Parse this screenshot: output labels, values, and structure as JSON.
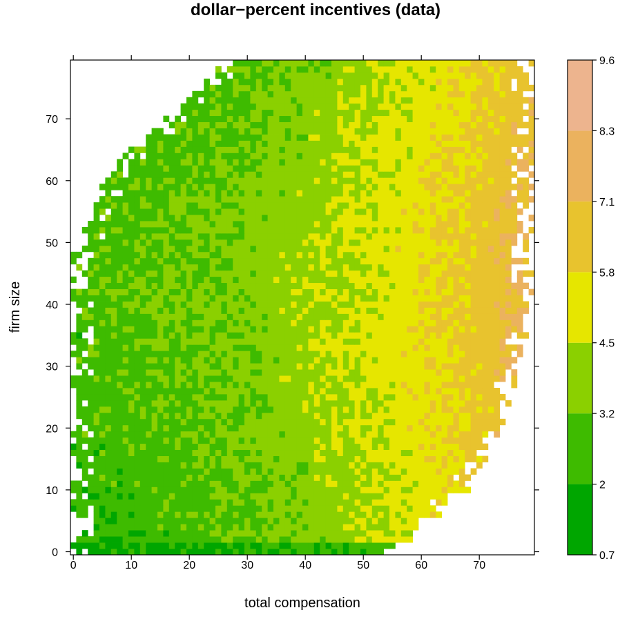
{
  "chart_data": {
    "type": "heatmap",
    "title": "dollar−percent incentives (data)",
    "xlabel": "total compensation",
    "ylabel": "firm size",
    "xlim": [
      -0.5,
      79.5
    ],
    "ylim": [
      -0.5,
      79.5
    ],
    "x_ticks": [
      0,
      10,
      20,
      30,
      40,
      50,
      60,
      70
    ],
    "x_tick_labels": [
      "0",
      "10",
      "20",
      "30",
      "40",
      "50",
      "60",
      "70"
    ],
    "y_ticks": [
      0,
      10,
      20,
      30,
      40,
      50,
      60,
      70
    ],
    "y_tick_labels": [
      "0",
      "10",
      "20",
      "30",
      "40",
      "50",
      "60",
      "70"
    ],
    "grid": false,
    "colorbar": {
      "breaks": [
        0.7,
        2,
        3.2,
        4.5,
        5.8,
        7.1,
        8.3,
        9.6
      ],
      "labels": [
        "0.7",
        "2",
        "3.2",
        "4.5",
        "5.8",
        "7.1",
        "8.3",
        "9.6"
      ],
      "colors": [
        "#00A600",
        "#3EBB00",
        "#8BD000",
        "#E6E600",
        "#E8C32E",
        "#EBB25E",
        "#EDB48E",
        "#F2F2F2"
      ]
    },
    "value_model": {
      "description_of_surface": "incentive value over total compensation (x) and firm size (y)",
      "center_x": 36,
      "center_y": 40,
      "base_value": 3.9,
      "x_slope": 0.052,
      "x_curvature": 0.0006,
      "y_curvature": -0.0004,
      "bottom_band_value": 1.4,
      "left_band_value": 2.6
    },
    "coverage": {
      "x_max_by_y": [
        [
          0,
          56
        ],
        [
          5,
          62
        ],
        [
          10,
          68
        ],
        [
          20,
          74
        ],
        [
          30,
          77
        ],
        [
          40,
          79
        ],
        [
          80,
          79
        ]
      ],
      "x_min_by_y": [
        [
          0,
          0
        ],
        [
          48,
          0
        ],
        [
          55,
          3
        ],
        [
          60,
          5
        ],
        [
          65,
          10
        ],
        [
          70,
          16
        ],
        [
          75,
          22
        ],
        [
          80,
          26
        ]
      ]
    }
  }
}
